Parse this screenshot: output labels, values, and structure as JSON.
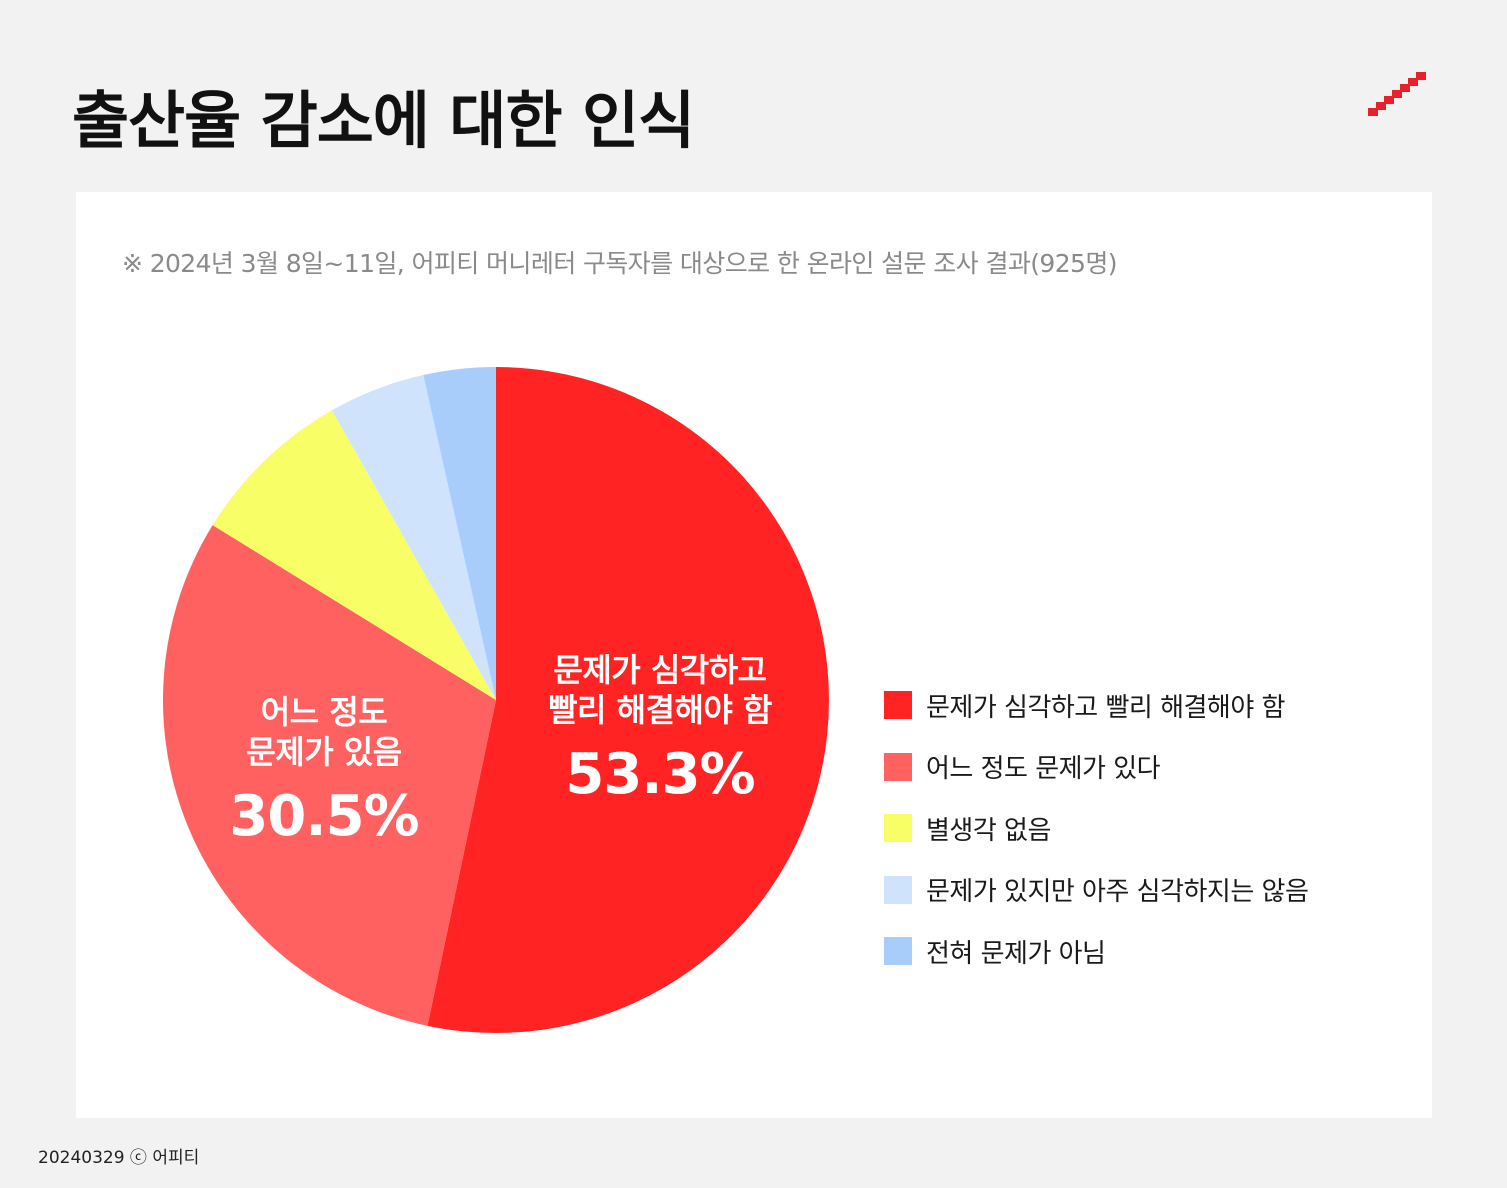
{
  "title": "출산율 감소에 대한 인식",
  "note": "※ 2024년 3월 8일~11일, 어피티 머니레터 구독자를 대상으로 한 온라인 설문 조사 결과(925명)",
  "footer": "20240329 ⓒ 어피티",
  "colors": {
    "background": "#f2f2f2",
    "card": "#ffffff",
    "brand": "#e8202a"
  },
  "pie_labels": {
    "big": {
      "line1": "문제가 심각하고",
      "line2": "빨리 해결해야 함",
      "value": "53.3%"
    },
    "second": {
      "line1": "어느 정도",
      "line2": "문제가 있음",
      "value": "30.5%"
    }
  },
  "chart_data": {
    "type": "pie",
    "title": "출산율 감소에 대한 인식",
    "unit": "%",
    "legend_position": "right",
    "slices": [
      {
        "label": "문제가 심각하고 빨리 해결해야 함",
        "value": 53.3,
        "color": "#ff2323"
      },
      {
        "label": "어느 정도 문제가 있다",
        "value": 30.5,
        "color": "#ff6060"
      },
      {
        "label": "별생각 없음",
        "value": 8.0,
        "color": "#f8ff66"
      },
      {
        "label": "문제가 있지만 아주 심각하지는 않음",
        "value": 4.7,
        "color": "#cfe3fd"
      },
      {
        "label": "전혀 문제가 아님",
        "value": 3.5,
        "color": "#a9cdfb"
      }
    ]
  }
}
